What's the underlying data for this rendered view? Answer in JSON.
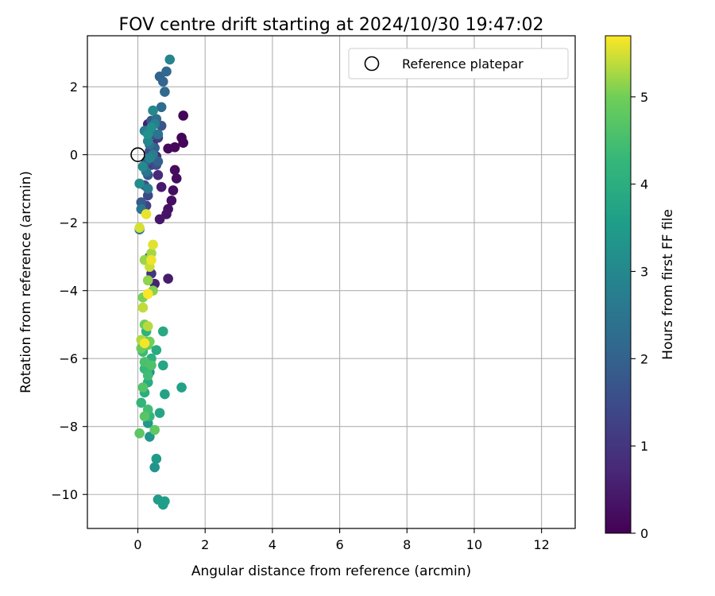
{
  "chart_data": {
    "type": "scatter",
    "title": "FOV centre drift starting at 2024/10/30 19:47:02",
    "xlabel": "Angular distance from reference (arcmin)",
    "ylabel": "Rotation from reference (arcmin)",
    "xlim": [
      -1.5,
      13
    ],
    "ylim": [
      -11,
      3.5
    ],
    "xticks": [
      0,
      2,
      4,
      6,
      8,
      10,
      12
    ],
    "yticks": [
      -10,
      -8,
      -6,
      -4,
      -2,
      0,
      2
    ],
    "grid": true,
    "legend": {
      "position": "upper-right",
      "entries": [
        "Reference platepar"
      ]
    },
    "reference": {
      "x": 0,
      "y": 0,
      "label": "Reference platepar"
    },
    "colorbar": {
      "label": "Hours from first FF file",
      "range": [
        0,
        5.7
      ],
      "ticks": [
        0,
        1,
        2,
        3,
        4,
        5
      ],
      "colormap": "viridis"
    },
    "points": [
      {
        "x": 1.35,
        "y": 1.15,
        "h": 0.05
      },
      {
        "x": 1.3,
        "y": 0.5,
        "h": 0.08
      },
      {
        "x": 1.35,
        "y": 0.35,
        "h": 0.1
      },
      {
        "x": 1.1,
        "y": 0.22,
        "h": 0.12
      },
      {
        "x": 0.9,
        "y": 0.18,
        "h": 0.15
      },
      {
        "x": 1.1,
        "y": -0.45,
        "h": 0.18
      },
      {
        "x": 1.15,
        "y": -0.7,
        "h": 0.2
      },
      {
        "x": 1.05,
        "y": -1.05,
        "h": 0.22
      },
      {
        "x": 1.0,
        "y": -1.35,
        "h": 0.25
      },
      {
        "x": 0.9,
        "y": -1.6,
        "h": 0.3
      },
      {
        "x": 0.85,
        "y": -1.75,
        "h": 0.35
      },
      {
        "x": 0.65,
        "y": -1.9,
        "h": 0.4
      },
      {
        "x": 0.7,
        "y": -0.95,
        "h": 0.45
      },
      {
        "x": 0.9,
        "y": -3.65,
        "h": 0.5
      },
      {
        "x": 0.5,
        "y": -3.8,
        "h": 0.6
      },
      {
        "x": 0.3,
        "y": 0.9,
        "h": 0.55
      },
      {
        "x": 0.45,
        "y": 0.3,
        "h": 0.65
      },
      {
        "x": 0.6,
        "y": -0.6,
        "h": 0.75
      },
      {
        "x": 0.55,
        "y": -0.05,
        "h": 0.85
      },
      {
        "x": 0.35,
        "y": -3.0,
        "h": 0.9
      },
      {
        "x": 0.4,
        "y": -3.5,
        "h": 1.0
      },
      {
        "x": 0.5,
        "y": 0.95,
        "h": 1.05
      },
      {
        "x": 0.6,
        "y": 0.5,
        "h": 1.1
      },
      {
        "x": 0.4,
        "y": -0.3,
        "h": 1.2
      },
      {
        "x": 0.25,
        "y": -1.5,
        "h": 1.3
      },
      {
        "x": 0.3,
        "y": -1.2,
        "h": 1.4
      },
      {
        "x": 0.35,
        "y": 0.1,
        "h": 1.5
      },
      {
        "x": 0.55,
        "y": -0.3,
        "h": 1.5
      },
      {
        "x": 0.45,
        "y": 0.6,
        "h": 1.6
      },
      {
        "x": 0.2,
        "y": -0.9,
        "h": 1.65
      },
      {
        "x": 0.7,
        "y": 0.85,
        "h": 1.7
      },
      {
        "x": 0.4,
        "y": 1.0,
        "h": 1.75
      },
      {
        "x": 0.3,
        "y": -0.6,
        "h": 1.8
      },
      {
        "x": 0.1,
        "y": -1.4,
        "h": 1.85
      },
      {
        "x": 0.25,
        "y": -0.2,
        "h": 1.9
      },
      {
        "x": 0.5,
        "y": 0.2,
        "h": 1.95
      },
      {
        "x": 0.6,
        "y": -0.2,
        "h": 2.0
      },
      {
        "x": 0.65,
        "y": 2.3,
        "h": 2.05
      },
      {
        "x": 0.75,
        "y": 2.15,
        "h": 2.1
      },
      {
        "x": 0.85,
        "y": 2.45,
        "h": 2.15
      },
      {
        "x": 0.8,
        "y": 1.85,
        "h": 2.2
      },
      {
        "x": 0.7,
        "y": 1.4,
        "h": 2.25
      },
      {
        "x": 0.55,
        "y": 1.05,
        "h": 2.3
      },
      {
        "x": 0.4,
        "y": 0.7,
        "h": 2.35
      },
      {
        "x": 0.35,
        "y": 0.3,
        "h": 2.4
      },
      {
        "x": 0.6,
        "y": 0.6,
        "h": 2.45
      },
      {
        "x": 0.25,
        "y": -0.5,
        "h": 2.5
      },
      {
        "x": 0.1,
        "y": -1.6,
        "h": 2.55
      },
      {
        "x": 0.05,
        "y": -2.2,
        "h": 2.6
      },
      {
        "x": 0.45,
        "y": 0.0,
        "h": 2.65
      },
      {
        "x": 0.3,
        "y": -1.0,
        "h": 2.7
      },
      {
        "x": 0.2,
        "y": 0.7,
        "h": 2.75
      },
      {
        "x": 0.5,
        "y": 0.9,
        "h": 2.8
      },
      {
        "x": 0.35,
        "y": -0.1,
        "h": 2.85
      },
      {
        "x": 0.95,
        "y": 2.8,
        "h": 2.9
      },
      {
        "x": 0.3,
        "y": 0.4,
        "h": 2.95
      },
      {
        "x": 0.45,
        "y": 1.3,
        "h": 3.0
      },
      {
        "x": 0.15,
        "y": -0.35,
        "h": 3.05
      },
      {
        "x": 0.05,
        "y": -0.85,
        "h": 3.1
      },
      {
        "x": 0.4,
        "y": 0.8,
        "h": 3.15
      },
      {
        "x": 0.3,
        "y": 0.6,
        "h": 3.2
      },
      {
        "x": 0.35,
        "y": -6.4,
        "h": 3.25
      },
      {
        "x": 0.5,
        "y": -9.2,
        "h": 3.3
      },
      {
        "x": 0.35,
        "y": -8.3,
        "h": 3.35
      },
      {
        "x": 0.3,
        "y": -7.9,
        "h": 3.4
      },
      {
        "x": 0.55,
        "y": -8.95,
        "h": 3.45
      },
      {
        "x": 0.6,
        "y": -10.15,
        "h": 3.5
      },
      {
        "x": 0.75,
        "y": -10.3,
        "h": 3.55
      },
      {
        "x": 0.8,
        "y": -10.2,
        "h": 3.6
      },
      {
        "x": 1.3,
        "y": -6.85,
        "h": 3.65
      },
      {
        "x": 0.8,
        "y": -7.05,
        "h": 3.7
      },
      {
        "x": 0.65,
        "y": -7.6,
        "h": 3.75
      },
      {
        "x": 0.75,
        "y": -6.2,
        "h": 3.8
      },
      {
        "x": 0.75,
        "y": -5.2,
        "h": 3.85
      },
      {
        "x": 0.55,
        "y": -5.75,
        "h": 3.9
      },
      {
        "x": 0.3,
        "y": -6.7,
        "h": 3.95
      },
      {
        "x": 0.2,
        "y": -7.0,
        "h": 4.0
      },
      {
        "x": 0.4,
        "y": -6.0,
        "h": 4.05
      },
      {
        "x": 0.25,
        "y": -5.2,
        "h": 4.1
      },
      {
        "x": 0.3,
        "y": -6.3,
        "h": 4.15
      },
      {
        "x": 0.1,
        "y": -7.3,
        "h": 4.2
      },
      {
        "x": 0.35,
        "y": -7.7,
        "h": 4.25
      },
      {
        "x": 0.2,
        "y": -6.3,
        "h": 4.3
      },
      {
        "x": 0.15,
        "y": -5.8,
        "h": 4.35
      },
      {
        "x": 0.3,
        "y": -6.5,
        "h": 4.4
      },
      {
        "x": 0.3,
        "y": -7.5,
        "h": 4.45
      },
      {
        "x": 0.25,
        "y": -5.5,
        "h": 4.5
      },
      {
        "x": 0.2,
        "y": -6.1,
        "h": 4.55
      },
      {
        "x": 0.4,
        "y": -6.2,
        "h": 4.6
      },
      {
        "x": 0.15,
        "y": -6.85,
        "h": 4.65
      },
      {
        "x": 0.2,
        "y": -7.7,
        "h": 4.7
      },
      {
        "x": 0.05,
        "y": -8.2,
        "h": 4.75
      },
      {
        "x": 0.5,
        "y": -8.1,
        "h": 4.8
      },
      {
        "x": 0.3,
        "y": -5.6,
        "h": 4.85
      },
      {
        "x": 0.1,
        "y": -5.7,
        "h": 4.9
      },
      {
        "x": 0.2,
        "y": -5.0,
        "h": 4.95
      },
      {
        "x": 0.35,
        "y": -5.5,
        "h": 5.0
      },
      {
        "x": 0.15,
        "y": -4.2,
        "h": 5.05
      },
      {
        "x": 0.45,
        "y": -4.0,
        "h": 5.1
      },
      {
        "x": 0.3,
        "y": -3.7,
        "h": 5.15
      },
      {
        "x": 0.2,
        "y": -3.1,
        "h": 5.2
      },
      {
        "x": 0.4,
        "y": -2.9,
        "h": 5.25
      },
      {
        "x": 0.1,
        "y": -5.45,
        "h": 5.3
      },
      {
        "x": 0.3,
        "y": -5.05,
        "h": 5.35
      },
      {
        "x": 0.15,
        "y": -4.5,
        "h": 5.4
      },
      {
        "x": 0.35,
        "y": -3.3,
        "h": 5.45
      },
      {
        "x": 0.05,
        "y": -2.15,
        "h": 5.5
      },
      {
        "x": 0.45,
        "y": -2.65,
        "h": 5.55
      },
      {
        "x": 0.25,
        "y": -1.75,
        "h": 5.6
      },
      {
        "x": 0.4,
        "y": -3.1,
        "h": 5.62
      },
      {
        "x": 0.2,
        "y": -5.55,
        "h": 5.65
      },
      {
        "x": 0.3,
        "y": -4.1,
        "h": 5.68
      }
    ]
  }
}
